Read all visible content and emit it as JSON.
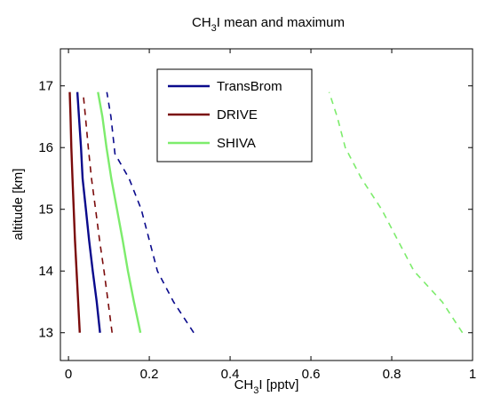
{
  "chart_data": {
    "type": "line",
    "title": {
      "main": "CH",
      "sub": "3",
      "rest": "I mean and maximum"
    },
    "xlabel": {
      "main": "CH",
      "sub": "3",
      "rest": "I [pptv]"
    },
    "ylabel": "altitude [km]",
    "xlim": [
      -0.02,
      1.0
    ],
    "ylim": [
      12.55,
      17.6
    ],
    "xticks": [
      0,
      0.2,
      0.4,
      0.6,
      0.8,
      1
    ],
    "xtick_labels": [
      "0",
      "0.2",
      "0.4",
      "0.6",
      "0.8",
      "1"
    ],
    "yticks": [
      13,
      14,
      15,
      16,
      17
    ],
    "ytick_labels": [
      "13",
      "14",
      "15",
      "16",
      "17"
    ],
    "grid": false,
    "legend_position": "top-center",
    "series": [
      {
        "name": "TransBrom",
        "kind": "mean",
        "color": "#0a0a8c",
        "dashed": false,
        "x": [
          0.078,
          0.07,
          0.06,
          0.051,
          0.043,
          0.035,
          0.031,
          0.026,
          0.022
        ],
        "y": [
          13.0,
          13.5,
          14.0,
          14.5,
          15.0,
          15.5,
          16.0,
          16.5,
          16.9
        ]
      },
      {
        "name": "TransBrom",
        "kind": "maximum",
        "color": "#0a0a8c",
        "dashed": false,
        "x": [
          0.31,
          0.26,
          0.22,
          0.2,
          0.18,
          0.15,
          0.115,
          0.105,
          0.095
        ],
        "y": [
          13.0,
          13.5,
          14.0,
          14.5,
          15.0,
          15.5,
          15.9,
          16.5,
          16.9
        ]
      },
      {
        "name": "DRIVE",
        "kind": "mean",
        "color": "#7a0a0a",
        "dashed": false,
        "x": [
          0.028,
          0.024,
          0.02,
          0.016,
          0.013,
          0.01,
          0.007,
          0.005,
          0.003
        ],
        "y": [
          13.0,
          13.5,
          14.0,
          14.5,
          15.0,
          15.5,
          16.0,
          16.5,
          16.9
        ]
      },
      {
        "name": "DRIVE",
        "kind": "maximum",
        "color": "#7a0a0a",
        "dashed": false,
        "x": [
          0.108,
          0.098,
          0.088,
          0.077,
          0.067,
          0.057,
          0.049,
          0.042,
          0.036
        ],
        "y": [
          13.0,
          13.5,
          14.0,
          14.5,
          15.0,
          15.5,
          16.0,
          16.5,
          16.9
        ]
      },
      {
        "name": "SHIVA",
        "kind": "mean",
        "color": "#7dec6c",
        "dashed": false,
        "x": [
          0.178,
          0.162,
          0.147,
          0.134,
          0.12,
          0.106,
          0.094,
          0.084,
          0.073
        ],
        "y": [
          13.0,
          13.5,
          14.0,
          14.5,
          15.0,
          15.5,
          16.0,
          16.5,
          16.9
        ]
      },
      {
        "name": "SHIVA",
        "kind": "maximum",
        "color": "#7dec6c",
        "dashed": false,
        "x": [
          0.975,
          0.925,
          0.855,
          0.815,
          0.775,
          0.725,
          0.685,
          0.665,
          0.645
        ],
        "y": [
          13.0,
          13.5,
          14.0,
          14.5,
          15.0,
          15.5,
          16.0,
          16.5,
          16.9
        ]
      }
    ],
    "legend": [
      {
        "label": "TransBrom",
        "color": "#0a0a8c"
      },
      {
        "label": "DRIVE",
        "color": "#7a0a0a"
      },
      {
        "label": "SHIVA",
        "color": "#7dec6c"
      }
    ]
  }
}
